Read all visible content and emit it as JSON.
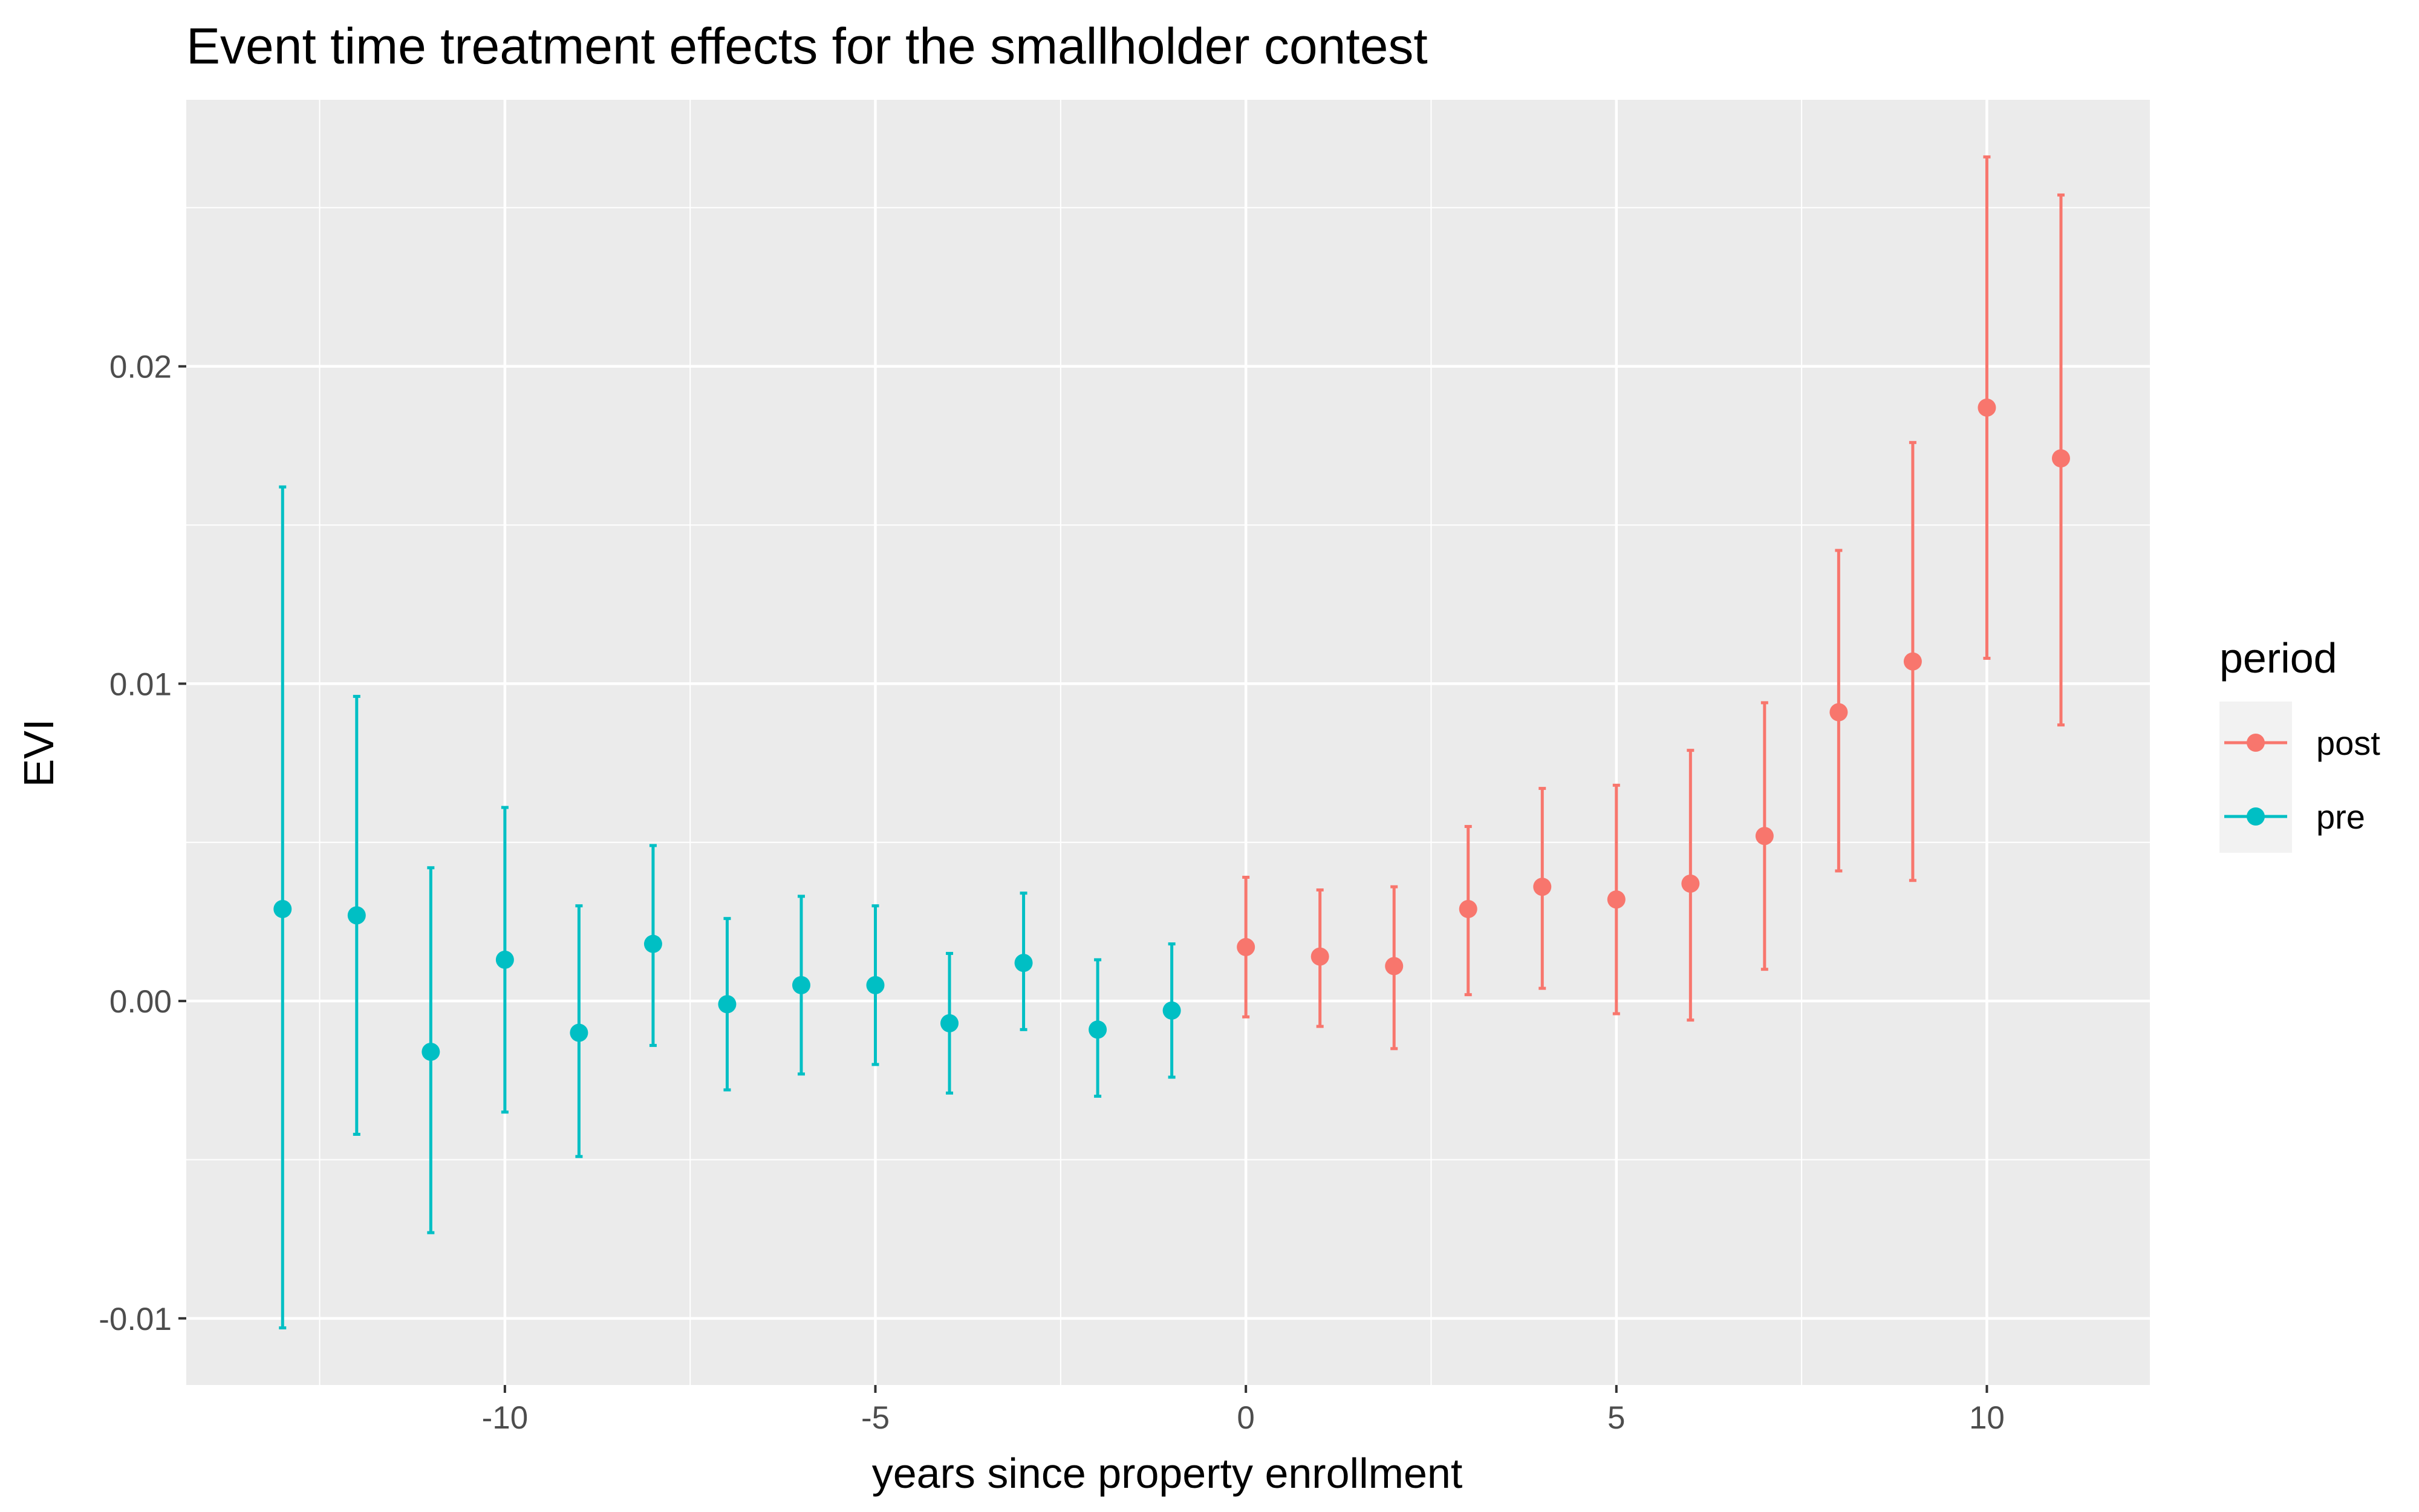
{
  "chart_data": {
    "type": "scatter",
    "subtype": "point-with-errorbars",
    "title": "Event time treatment effects for the smallholder contest",
    "xlabel": "years since property enrollment",
    "ylabel": "EVI",
    "xlim": [
      -14.3,
      12.2
    ],
    "ylim": [
      -0.0121,
      0.0284
    ],
    "x_ticks": [
      -10,
      -5,
      0,
      5,
      10
    ],
    "x_tick_labels": [
      "-10",
      "-5",
      "0",
      "5",
      "10"
    ],
    "y_ticks": [
      -0.01,
      0.0,
      0.01,
      0.02
    ],
    "y_tick_labels": [
      "-0.01",
      "0.00",
      "0.01",
      "0.02"
    ],
    "grid": true,
    "background": "#EBEBEB",
    "legend": {
      "title": "period",
      "position": "right",
      "entries": [
        {
          "name": "post",
          "color": "#F8766D"
        },
        {
          "name": "pre",
          "color": "#00BFC4"
        }
      ]
    },
    "series": [
      {
        "name": "pre",
        "color": "#00BFC4",
        "points": [
          {
            "x": -13,
            "y": 0.0029,
            "lower": -0.0103,
            "upper": 0.0162
          },
          {
            "x": -12,
            "y": 0.0027,
            "lower": -0.0042,
            "upper": 0.0096
          },
          {
            "x": -11,
            "y": -0.0016,
            "lower": -0.0073,
            "upper": 0.0042
          },
          {
            "x": -10,
            "y": 0.0013,
            "lower": -0.0035,
            "upper": 0.0061
          },
          {
            "x": -9,
            "y": -0.001,
            "lower": -0.0049,
            "upper": 0.003
          },
          {
            "x": -8,
            "y": 0.0018,
            "lower": -0.0014,
            "upper": 0.0049
          },
          {
            "x": -7,
            "y": -0.0001,
            "lower": -0.0028,
            "upper": 0.0026
          },
          {
            "x": -6,
            "y": 0.0005,
            "lower": -0.0023,
            "upper": 0.0033
          },
          {
            "x": -5,
            "y": 0.0005,
            "lower": -0.002,
            "upper": 0.003
          },
          {
            "x": -4,
            "y": -0.0007,
            "lower": -0.0029,
            "upper": 0.0015
          },
          {
            "x": -3,
            "y": 0.0012,
            "lower": -0.0009,
            "upper": 0.0034
          },
          {
            "x": -2,
            "y": -0.0009,
            "lower": -0.003,
            "upper": 0.0013
          },
          {
            "x": -1,
            "y": -0.0003,
            "lower": -0.0024,
            "upper": 0.0018
          }
        ]
      },
      {
        "name": "post",
        "color": "#F8766D",
        "points": [
          {
            "x": 0,
            "y": 0.0017,
            "lower": -0.0005,
            "upper": 0.0039
          },
          {
            "x": 1,
            "y": 0.0014,
            "lower": -0.0008,
            "upper": 0.0035
          },
          {
            "x": 2,
            "y": 0.0011,
            "lower": -0.0015,
            "upper": 0.0036
          },
          {
            "x": 3,
            "y": 0.0029,
            "lower": 0.0002,
            "upper": 0.0055
          },
          {
            "x": 4,
            "y": 0.0036,
            "lower": 0.0004,
            "upper": 0.0067
          },
          {
            "x": 5,
            "y": 0.0032,
            "lower": -0.0004,
            "upper": 0.0068
          },
          {
            "x": 6,
            "y": 0.0037,
            "lower": -0.0006,
            "upper": 0.0079
          },
          {
            "x": 7,
            "y": 0.0052,
            "lower": 0.001,
            "upper": 0.0094
          },
          {
            "x": 8,
            "y": 0.0091,
            "lower": 0.0041,
            "upper": 0.0142
          },
          {
            "x": 9,
            "y": 0.0107,
            "lower": 0.0038,
            "upper": 0.0176
          },
          {
            "x": 10,
            "y": 0.0187,
            "lower": 0.0108,
            "upper": 0.0266
          },
          {
            "x": 11,
            "y": 0.0171,
            "lower": 0.0087,
            "upper": 0.0254
          }
        ]
      }
    ]
  }
}
